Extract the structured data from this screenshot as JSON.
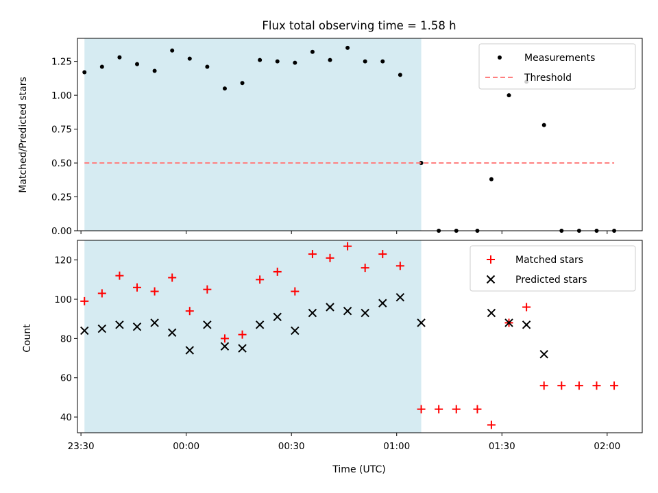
{
  "chart_data": [
    {
      "type": "scatter",
      "title": "Flux total observing time = 1.58 h",
      "xlabel": "",
      "ylabel": "Matched/Predicted stars",
      "x_units": "time (UTC)",
      "xlim": [
        "23:29",
        "02:10"
      ],
      "ylim": [
        0,
        1.42
      ],
      "yticks": [
        "0.00",
        "0.25",
        "0.50",
        "0.75",
        "1.00",
        "1.25"
      ],
      "shaded_interval": [
        "23:31",
        "01:07"
      ],
      "shade_color": "#add8e6",
      "legend_position": "upper right",
      "series": [
        {
          "name": "Measurements",
          "style": "point",
          "color": "#000000",
          "points": [
            [
              "23:31",
              1.17
            ],
            [
              "23:36",
              1.21
            ],
            [
              "23:41",
              1.28
            ],
            [
              "23:46",
              1.23
            ],
            [
              "23:51",
              1.18
            ],
            [
              "23:56",
              1.33
            ],
            [
              "00:01",
              1.27
            ],
            [
              "00:06",
              1.21
            ],
            [
              "00:11",
              1.05
            ],
            [
              "00:16",
              1.09
            ],
            [
              "00:21",
              1.26
            ],
            [
              "00:26",
              1.25
            ],
            [
              "00:31",
              1.24
            ],
            [
              "00:36",
              1.32
            ],
            [
              "00:41",
              1.26
            ],
            [
              "00:46",
              1.35
            ],
            [
              "00:51",
              1.25
            ],
            [
              "00:56",
              1.25
            ],
            [
              "01:01",
              1.15
            ],
            [
              "01:07",
              0.5
            ],
            [
              "01:12",
              0.0
            ],
            [
              "01:17",
              0.0
            ],
            [
              "01:23",
              0.0
            ],
            [
              "01:27",
              0.38
            ],
            [
              "01:32",
              1.0
            ],
            [
              "01:37",
              1.1
            ],
            [
              "01:42",
              0.78
            ],
            [
              "01:47",
              0.0
            ],
            [
              "01:52",
              0.0
            ],
            [
              "01:57",
              0.0
            ],
            [
              "02:02",
              0.0
            ]
          ]
        },
        {
          "name": "Threshold",
          "style": "dashed-line",
          "color": "#ff7f7f",
          "points": [
            [
              "23:31",
              0.5
            ],
            [
              "02:02",
              0.5
            ]
          ]
        }
      ]
    },
    {
      "type": "scatter",
      "title": "",
      "xlabel": "Time (UTC)",
      "ylabel": "Count",
      "x_units": "time (UTC)",
      "xlim": [
        "23:29",
        "02:10"
      ],
      "ylim": [
        32,
        130
      ],
      "yticks": [
        "40",
        "60",
        "80",
        "100",
        "120"
      ],
      "xticks": [
        "23:30",
        "00:00",
        "00:30",
        "01:00",
        "01:30",
        "02:00"
      ],
      "shaded_interval": [
        "23:31",
        "01:07"
      ],
      "shade_color": "#add8e6",
      "legend_position": "upper right",
      "series": [
        {
          "name": "Matched stars",
          "style": "plus",
          "color": "#ff0000",
          "points": [
            [
              "23:31",
              99
            ],
            [
              "23:36",
              103
            ],
            [
              "23:41",
              112
            ],
            [
              "23:46",
              106
            ],
            [
              "23:51",
              104
            ],
            [
              "23:56",
              111
            ],
            [
              "00:01",
              94
            ],
            [
              "00:06",
              105
            ],
            [
              "00:11",
              80
            ],
            [
              "00:16",
              82
            ],
            [
              "00:21",
              110
            ],
            [
              "00:26",
              114
            ],
            [
              "00:31",
              104
            ],
            [
              "00:36",
              123
            ],
            [
              "00:41",
              121
            ],
            [
              "00:46",
              127
            ],
            [
              "00:51",
              116
            ],
            [
              "00:56",
              123
            ],
            [
              "01:01",
              117
            ],
            [
              "01:07",
              44
            ],
            [
              "01:12",
              44
            ],
            [
              "01:17",
              44
            ],
            [
              "01:23",
              44
            ],
            [
              "01:27",
              36
            ],
            [
              "01:32",
              88
            ],
            [
              "01:37",
              96
            ],
            [
              "01:42",
              56
            ],
            [
              "01:47",
              56
            ],
            [
              "01:52",
              56
            ],
            [
              "01:57",
              56
            ],
            [
              "02:02",
              56
            ]
          ]
        },
        {
          "name": "Predicted stars",
          "style": "x",
          "color": "#000000",
          "points": [
            [
              "23:31",
              84
            ],
            [
              "23:36",
              85
            ],
            [
              "23:41",
              87
            ],
            [
              "23:46",
              86
            ],
            [
              "23:51",
              88
            ],
            [
              "23:56",
              83
            ],
            [
              "00:01",
              74
            ],
            [
              "00:06",
              87
            ],
            [
              "00:11",
              76
            ],
            [
              "00:16",
              75
            ],
            [
              "00:21",
              87
            ],
            [
              "00:26",
              91
            ],
            [
              "00:31",
              84
            ],
            [
              "00:36",
              93
            ],
            [
              "00:41",
              96
            ],
            [
              "00:46",
              94
            ],
            [
              "00:51",
              93
            ],
            [
              "00:56",
              98
            ],
            [
              "01:01",
              101
            ],
            [
              "01:07",
              88
            ],
            [
              "01:27",
              93
            ],
            [
              "01:32",
              88
            ],
            [
              "01:37",
              87
            ],
            [
              "01:42",
              72
            ]
          ]
        }
      ]
    }
  ]
}
